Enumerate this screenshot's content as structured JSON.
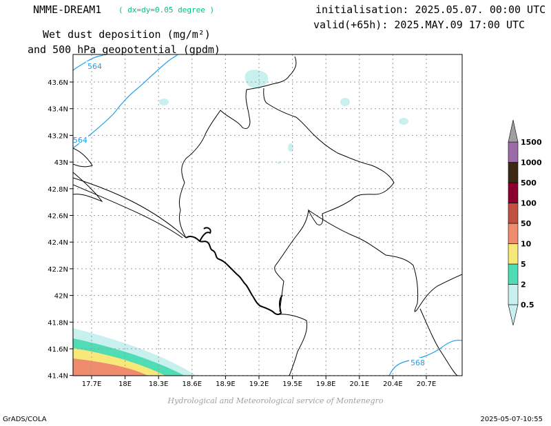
{
  "header": {
    "model": "NMME-DREAM1",
    "resolution": "( dx=dy=0.05 degree )",
    "initialisation": "initialisation: 2025.05.07. 00:00 UTC",
    "valid": "valid(+65h): 2025.MAY.09 17:00 UTC",
    "title_line1": "Wet dust deposition (mg/m²)",
    "title_line2": "and 500 hPa geopotential (gpdm)"
  },
  "map": {
    "lon_labels": [
      "17.7E",
      "18E",
      "18.3E",
      "18.6E",
      "18.9E",
      "19.2E",
      "19.5E",
      "19.8E",
      "20.1E",
      "20.4E",
      "20.7E"
    ],
    "lat_labels": [
      "43.6N",
      "43.4N",
      "43.2N",
      "43N",
      "42.8N",
      "42.6N",
      "42.4N",
      "42.2N",
      "42N",
      "41.8N",
      "41.6N",
      "41.4N"
    ],
    "contours": [
      {
        "label": "564",
        "color": "#1e9ee8"
      },
      {
        "label": "564",
        "color": "#1e9ee8"
      },
      {
        "label": "568",
        "color": "#1e9ee8"
      }
    ]
  },
  "colorbar": {
    "labels": [
      "0.5",
      "2",
      "5",
      "10",
      "50",
      "100",
      "500",
      "1000",
      "1500"
    ],
    "colors": [
      "#c8f0ee",
      "#50dcb4",
      "#f8e87a",
      "#f08c6e",
      "#c05040",
      "#8c0030",
      "#3c2814",
      "#9c6ca8",
      "#a0a0a0"
    ]
  },
  "footer": {
    "credit": "Hydrological and Meteorological service of Montenegro",
    "left": "GrADS/COLA",
    "right": "2025-05-07-10:55"
  }
}
